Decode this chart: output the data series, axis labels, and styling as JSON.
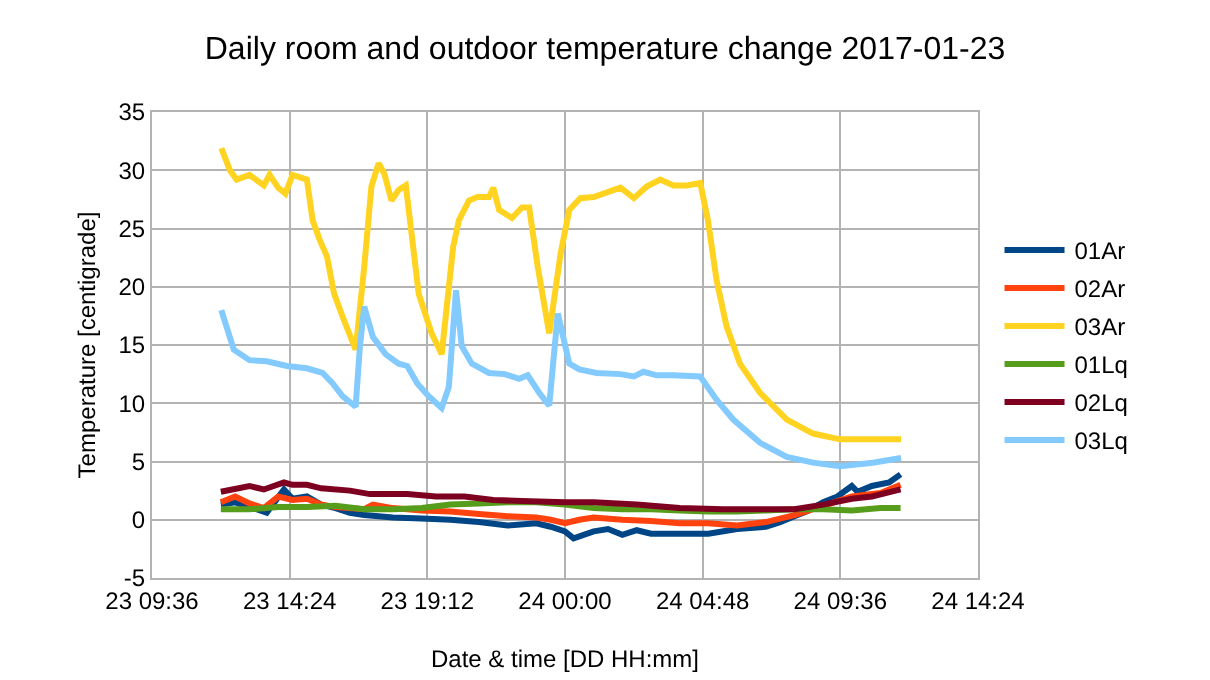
{
  "chart_data": {
    "type": "line",
    "title": "Daily room and outdoor temperature change 2017-01-23",
    "xlabel": "Date & time [DD HH:mm]",
    "ylabel": "Temperature [centigrade]",
    "xlim": [
      "2017-01-23T09:36",
      "2017-01-24T14:24"
    ],
    "xticks": [
      {
        "value": "2017-01-23T09:36",
        "label": "23 09:36"
      },
      {
        "value": "2017-01-23T14:24",
        "label": "23 14:24"
      },
      {
        "value": "2017-01-23T19:12",
        "label": "23 19:12"
      },
      {
        "value": "2017-01-24T00:00",
        "label": "24 00:00"
      },
      {
        "value": "2017-01-24T04:48",
        "label": "24 04:48"
      },
      {
        "value": "2017-01-24T09:36",
        "label": "24 09:36"
      },
      {
        "value": "2017-01-24T14:24",
        "label": "24 14:24"
      }
    ],
    "ylim": [
      -5,
      35
    ],
    "yticks": [
      -5,
      0,
      5,
      10,
      15,
      20,
      25,
      30,
      35
    ],
    "grid": true,
    "legend": "right",
    "marker": "none",
    "line_style": "solid",
    "series": [
      {
        "name": "01Ar",
        "color": "#004586",
        "x": [
          "2017-01-23T12:00",
          "2017-01-23T12:30",
          "2017-01-23T13:00",
          "2017-01-23T13:36",
          "2017-01-23T14:12",
          "2017-01-23T14:30",
          "2017-01-23T15:00",
          "2017-01-23T15:30",
          "2017-01-23T16:00",
          "2017-01-23T16:30",
          "2017-01-23T17:00",
          "2017-01-23T18:00",
          "2017-01-23T19:00",
          "2017-01-23T20:00",
          "2017-01-23T21:00",
          "2017-01-23T22:00",
          "2017-01-23T23:00",
          "2017-01-23T23:30",
          "2017-01-24T00:00",
          "2017-01-24T00:18",
          "2017-01-24T01:00",
          "2017-01-24T01:30",
          "2017-01-24T02:00",
          "2017-01-24T02:30",
          "2017-01-24T03:00",
          "2017-01-24T04:00",
          "2017-01-24T05:00",
          "2017-01-24T06:00",
          "2017-01-24T07:00",
          "2017-01-24T07:30",
          "2017-01-24T08:00",
          "2017-01-24T08:30",
          "2017-01-24T09:00",
          "2017-01-24T09:30",
          "2017-01-24T10:00",
          "2017-01-24T10:12",
          "2017-01-24T10:42",
          "2017-01-24T11:18",
          "2017-01-24T11:42"
        ],
        "values": [
          1.3,
          1.5,
          1.1,
          0.6,
          2.6,
          1.8,
          2.0,
          1.3,
          1.0,
          0.6,
          0.4,
          0.2,
          0.1,
          0.0,
          -0.2,
          -0.5,
          -0.3,
          -0.6,
          -1.0,
          -1.6,
          -1.0,
          -0.8,
          -1.3,
          -0.9,
          -1.2,
          -1.2,
          -1.2,
          -0.8,
          -0.6,
          -0.2,
          0.3,
          0.8,
          1.5,
          2.0,
          2.9,
          2.4,
          2.9,
          3.2,
          3.9
        ]
      },
      {
        "name": "02Ar",
        "color": "#ff420e",
        "x": [
          "2017-01-23T12:00",
          "2017-01-23T12:30",
          "2017-01-23T13:00",
          "2017-01-23T13:30",
          "2017-01-23T14:00",
          "2017-01-23T14:30",
          "2017-01-23T15:00",
          "2017-01-23T15:30",
          "2017-01-23T16:00",
          "2017-01-23T17:00",
          "2017-01-23T17:18",
          "2017-01-23T18:00",
          "2017-01-23T19:00",
          "2017-01-23T20:00",
          "2017-01-23T21:00",
          "2017-01-23T22:00",
          "2017-01-23T23:00",
          "2017-01-23T23:30",
          "2017-01-24T00:00",
          "2017-01-24T00:30",
          "2017-01-24T01:00",
          "2017-01-24T02:00",
          "2017-01-24T03:00",
          "2017-01-24T04:00",
          "2017-01-24T05:00",
          "2017-01-24T06:00",
          "2017-01-24T07:00",
          "2017-01-24T08:00",
          "2017-01-24T09:00",
          "2017-01-24T10:00",
          "2017-01-24T11:00",
          "2017-01-24T11:42"
        ],
        "values": [
          1.5,
          2.0,
          1.4,
          1.0,
          2.0,
          1.7,
          1.8,
          1.3,
          1.1,
          0.9,
          1.3,
          1.0,
          0.8,
          0.7,
          0.5,
          0.3,
          0.2,
          0.0,
          -0.3,
          0.0,
          0.2,
          0.0,
          -0.1,
          -0.3,
          -0.3,
          -0.5,
          -0.2,
          0.4,
          1.2,
          2.0,
          2.3,
          3.0
        ]
      },
      {
        "name": "03Ar",
        "color": "#ffd320",
        "x": [
          "2017-01-23T12:01",
          "2017-01-23T12:19",
          "2017-01-23T12:33",
          "2017-01-23T13:00",
          "2017-01-23T13:30",
          "2017-01-23T13:42",
          "2017-01-23T14:00",
          "2017-01-23T14:15",
          "2017-01-23T14:30",
          "2017-01-23T15:00",
          "2017-01-23T15:12",
          "2017-01-23T15:27",
          "2017-01-23T15:42",
          "2017-01-23T15:57",
          "2017-01-23T16:15",
          "2017-01-23T16:42",
          "2017-01-23T17:00",
          "2017-01-23T17:15",
          "2017-01-23T17:30",
          "2017-01-23T17:42",
          "2017-01-23T17:57",
          "2017-01-23T18:12",
          "2017-01-23T18:27",
          "2017-01-23T18:54",
          "2017-01-23T19:21",
          "2017-01-23T19:42",
          "2017-01-23T20:06",
          "2017-01-23T20:18",
          "2017-01-23T20:39",
          "2017-01-23T20:57",
          "2017-01-23T21:21",
          "2017-01-23T21:30",
          "2017-01-23T21:42",
          "2017-01-23T22:09",
          "2017-01-23T22:30",
          "2017-01-23T22:45",
          "2017-01-23T23:03",
          "2017-01-23T23:27",
          "2017-01-23T23:51",
          "2017-01-24T00:09",
          "2017-01-24T00:32",
          "2017-01-24T01:00",
          "2017-01-24T01:28",
          "2017-01-24T01:56",
          "2017-01-24T02:24",
          "2017-01-24T02:51",
          "2017-01-24T03:19",
          "2017-01-24T03:47",
          "2017-01-24T04:15",
          "2017-01-24T04:43",
          "2017-01-24T04:59",
          "2017-01-24T05:17",
          "2017-01-24T05:38",
          "2017-01-24T06:06",
          "2017-01-24T06:48",
          "2017-01-24T07:44",
          "2017-01-24T08:39",
          "2017-01-24T09:35",
          "2017-01-24T10:44",
          "2017-01-24T11:43"
        ],
        "values": [
          31.9,
          30.0,
          29.2,
          29.6,
          28.7,
          29.6,
          28.5,
          28.0,
          29.6,
          29.2,
          25.7,
          24.0,
          22.6,
          19.4,
          17.4,
          14.6,
          21.7,
          28.6,
          30.6,
          29.7,
          27.4,
          28.3,
          28.7,
          19.4,
          16.0,
          14.2,
          23.4,
          25.7,
          27.4,
          27.7,
          27.7,
          28.5,
          26.6,
          25.9,
          26.8,
          26.8,
          21.7,
          16.0,
          22.9,
          26.6,
          27.6,
          27.7,
          28.1,
          28.5,
          27.6,
          28.6,
          29.2,
          28.7,
          28.7,
          28.9,
          25.7,
          20.6,
          16.6,
          13.4,
          10.9,
          8.6,
          7.4,
          6.9,
          6.9,
          6.9
        ]
      },
      {
        "name": "01Lq",
        "color": "#579d1c",
        "x": [
          "2017-01-23T12:00",
          "2017-01-23T13:00",
          "2017-01-23T14:00",
          "2017-01-23T15:00",
          "2017-01-23T16:00",
          "2017-01-23T17:00",
          "2017-01-23T18:00",
          "2017-01-23T19:00",
          "2017-01-23T20:00",
          "2017-01-23T21:00",
          "2017-01-23T22:00",
          "2017-01-23T23:00",
          "2017-01-24T00:00",
          "2017-01-24T01:00",
          "2017-01-24T02:00",
          "2017-01-24T03:00",
          "2017-01-24T04:00",
          "2017-01-24T05:00",
          "2017-01-24T06:00",
          "2017-01-24T07:00",
          "2017-01-24T08:00",
          "2017-01-24T09:00",
          "2017-01-24T10:00",
          "2017-01-24T11:00",
          "2017-01-24T11:42"
        ],
        "values": [
          0.9,
          0.9,
          1.1,
          1.1,
          1.2,
          0.9,
          0.9,
          1.0,
          1.3,
          1.4,
          1.5,
          1.5,
          1.3,
          1.0,
          0.9,
          0.9,
          0.8,
          0.7,
          0.7,
          0.8,
          0.9,
          0.9,
          0.8,
          1.0,
          1.0
        ]
      },
      {
        "name": "02Lq",
        "color": "#7e0021",
        "x": [
          "2017-01-23T12:00",
          "2017-01-23T13:00",
          "2017-01-23T13:30",
          "2017-01-23T14:12",
          "2017-01-23T14:30",
          "2017-01-23T15:00",
          "2017-01-23T15:30",
          "2017-01-23T16:30",
          "2017-01-23T17:12",
          "2017-01-23T18:30",
          "2017-01-23T19:30",
          "2017-01-23T20:30",
          "2017-01-23T21:30",
          "2017-01-23T22:30",
          "2017-01-24T00:00",
          "2017-01-24T01:00",
          "2017-01-24T02:30",
          "2017-01-24T04:00",
          "2017-01-24T05:30",
          "2017-01-24T07:00",
          "2017-01-24T08:00",
          "2017-01-24T09:00",
          "2017-01-24T10:00",
          "2017-01-24T10:42",
          "2017-01-24T11:42"
        ],
        "values": [
          2.4,
          2.9,
          2.6,
          3.2,
          3.0,
          3.0,
          2.7,
          2.5,
          2.2,
          2.2,
          2.0,
          2.0,
          1.7,
          1.6,
          1.5,
          1.5,
          1.3,
          1.0,
          0.9,
          0.9,
          0.9,
          1.3,
          1.8,
          2.0,
          2.6
        ]
      },
      {
        "name": "03Lq",
        "color": "#83caff",
        "x": [
          "2017-01-23T12:01",
          "2017-01-23T12:27",
          "2017-01-23T13:00",
          "2017-01-23T13:36",
          "2017-01-23T14:18",
          "2017-01-23T15:00",
          "2017-01-23T15:33",
          "2017-01-23T15:54",
          "2017-01-23T16:15",
          "2017-01-23T16:42",
          "2017-01-23T16:51",
          "2017-01-23T17:00",
          "2017-01-23T17:18",
          "2017-01-23T17:45",
          "2017-01-23T18:12",
          "2017-01-23T18:30",
          "2017-01-23T18:51",
          "2017-01-23T19:15",
          "2017-01-23T19:42",
          "2017-01-23T19:57",
          "2017-01-23T20:12",
          "2017-01-23T20:24",
          "2017-01-23T20:45",
          "2017-01-23T21:21",
          "2017-01-23T21:54",
          "2017-01-23T22:24",
          "2017-01-23T22:42",
          "2017-01-23T23:06",
          "2017-01-23T23:27",
          "2017-01-23T23:45",
          "2017-01-24T00:09",
          "2017-01-24T00:30",
          "2017-01-24T01:06",
          "2017-01-24T01:56",
          "2017-01-24T02:24",
          "2017-01-24T02:44",
          "2017-01-24T03:12",
          "2017-01-24T03:47",
          "2017-01-24T04:43",
          "2017-01-24T05:17",
          "2017-01-24T05:52",
          "2017-01-24T06:48",
          "2017-01-24T07:44",
          "2017-01-24T08:39",
          "2017-01-24T09:35",
          "2017-01-24T10:44",
          "2017-01-24T11:43"
        ],
        "values": [
          18.0,
          14.6,
          13.7,
          13.6,
          13.2,
          13.0,
          12.6,
          11.7,
          10.6,
          9.7,
          14.9,
          18.3,
          15.7,
          14.2,
          13.4,
          13.2,
          11.7,
          10.6,
          9.6,
          11.4,
          19.7,
          14.9,
          13.4,
          12.6,
          12.5,
          12.1,
          12.4,
          10.9,
          9.8,
          17.7,
          13.4,
          12.9,
          12.6,
          12.5,
          12.3,
          12.7,
          12.4,
          12.4,
          12.3,
          10.3,
          8.6,
          6.6,
          5.4,
          4.9,
          4.6,
          4.9,
          5.3
        ]
      }
    ]
  }
}
